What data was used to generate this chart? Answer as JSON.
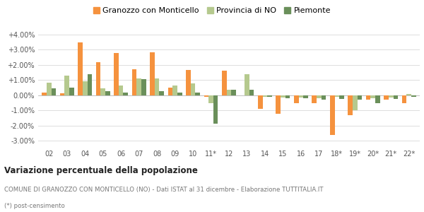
{
  "categories": [
    "02",
    "03",
    "04",
    "05",
    "06",
    "07",
    "08",
    "09",
    "10",
    "11*",
    "12",
    "13",
    "14",
    "15",
    "16",
    "17",
    "18*",
    "19*",
    "20*",
    "21*",
    "22*"
  ],
  "granozzo": [
    0.2,
    0.15,
    3.5,
    2.2,
    2.8,
    1.7,
    2.85,
    0.5,
    1.65,
    -0.1,
    1.6,
    0.0,
    -0.9,
    -1.2,
    -0.5,
    -0.5,
    -2.6,
    -1.3,
    -0.3,
    -0.3,
    -0.5
  ],
  "provincia": [
    0.85,
    1.3,
    0.9,
    0.45,
    0.65,
    1.1,
    1.1,
    0.65,
    0.8,
    -0.5,
    0.35,
    1.4,
    -0.1,
    -0.15,
    -0.15,
    -0.2,
    -0.1,
    -1.0,
    -0.2,
    -0.15,
    0.1
  ],
  "piemonte": [
    0.45,
    0.5,
    1.4,
    0.25,
    0.2,
    1.05,
    0.25,
    0.2,
    0.2,
    -1.85,
    0.35,
    0.35,
    -0.1,
    -0.2,
    -0.2,
    -0.3,
    -0.25,
    -0.3,
    -0.5,
    -0.25,
    -0.1
  ],
  "granozzo_color": "#f5923e",
  "provincia_color": "#b5c98e",
  "piemonte_color": "#6a8f5a",
  "background_color": "#ffffff",
  "grid_color": "#dddddd",
  "yticks": [
    -3.0,
    -2.0,
    -1.0,
    0.0,
    1.0,
    2.0,
    3.0,
    4.0
  ],
  "ylim": [
    -3.5,
    4.6
  ],
  "title": "Variazione percentuale della popolazione",
  "subtitle": "COMUNE DI GRANOZZO CON MONTICELLO (NO) - Dati ISTAT al 31 dicembre - Elaborazione TUTTITALIA.IT",
  "footnote": "(*) post-censimento",
  "legend_labels": [
    "Granozzo con Monticello",
    "Provincia di NO",
    "Piemonte"
  ],
  "bar_width": 0.26
}
